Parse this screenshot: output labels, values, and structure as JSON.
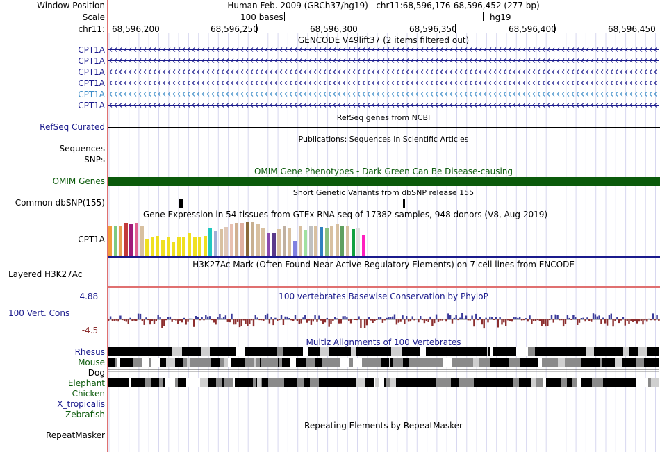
{
  "labels": {
    "window_position": "Window Position",
    "scale": "Scale",
    "chrom": "chr11:",
    "transcripts": [
      "CPT1A",
      "CPT1A",
      "CPT1A",
      "CPT1A",
      "CPT1A",
      "CPT1A"
    ],
    "refseq": "RefSeq Curated",
    "sequences": "Sequences",
    "snps": "SNPs",
    "omim": "OMIM Genes",
    "common_dbsnp": "Common dbSNP(155)",
    "gtex_gene": "CPT1A",
    "h3k27ac": "Layered H3K27Ac",
    "cons_max": "4.88 _",
    "cons_name": "100 Vert. Cons",
    "cons_min": "-4.5 _",
    "species": [
      "Rhesus",
      "Mouse",
      "Dog",
      "Elephant",
      "Chicken",
      "X_tropicalis",
      "Zebrafish"
    ],
    "repeatmasker": "RepeatMasker"
  },
  "header": {
    "assembly": "Human Feb. 2009 (GRCh37/hg19)",
    "position": "chr11:68,596,176-68,596,452 (277 bp)",
    "scale_text": "100 bases",
    "db": "hg19",
    "coordinates": [
      "68,596,200",
      "68,596,250",
      "68,596,300",
      "68,596,350",
      "68,596,400",
      "68,596,450"
    ]
  },
  "tracks": {
    "gencode_title": "GENCODE V49lift37 (2 items filtered out)",
    "refseq_title": "RefSeq genes from NCBI",
    "publications_title": "Publications: Sequences in Scientific Articles",
    "omim_title": "OMIM Gene Phenotypes - Dark Green Can Be Disease-causing",
    "snp_title": "Short Genetic Variants from dbSNP release 155",
    "gtex_title": "Gene Expression in 54 tissues from GTEx RNA-seq of 17382 samples, 948 donors (V8, Aug 2019)",
    "h3k27ac_title": "H3K27Ac Mark (Often Found Near Active Regulatory Elements) on 7 cell lines from ENCODE",
    "phylop_title": "100 vertebrates Basewise Conservation by PhyloP",
    "multiz_title": "Multiz Alignments of 100 Vertebrates",
    "repeatmasker_title": "Repeating Elements by RepeatMasker"
  },
  "colors": {
    "navy": "#1a1a8c",
    "omim_green": "#0b5a0b",
    "light_blue_transcript": "#3c8cc8",
    "phylop_pos": "#3a3a9a",
    "phylop_neg": "#8c2e2e",
    "h3k27ac_line": "#e07070",
    "grid": "#d8d8f0"
  },
  "gtex_colors": [
    "#f39c3a",
    "#7fc97f",
    "#e8a050",
    "#c23a3a",
    "#a01a7a",
    "#e06090",
    "#d8c0a0",
    "#f0e020",
    "#f0e020",
    "#f0e020",
    "#f0e020",
    "#f0e020",
    "#f0e020",
    "#f0e020",
    "#f0e020",
    "#f0e020",
    "#f0e020",
    "#f0e020",
    "#f0e020",
    "#20c8c0",
    "#a0b0d8",
    "#d8c0a0",
    "#e0c8b8",
    "#e8c0b0",
    "#d0b090",
    "#e0b0a0",
    "#8a6a3a",
    "#c8b090",
    "#d8c0a0",
    "#d8c0a0",
    "#8a4ab0",
    "#5a3a8a",
    "#d8c0a0",
    "#c0b0a0",
    "#d8c0a0",
    "#8080e0",
    "#d8c0a0",
    "#a0e0a0",
    "#c0c0c0",
    "#d8c0a0",
    "#3080c0",
    "#8ac080",
    "#d8c0a0",
    "#d8c0a0",
    "#60a060",
    "#d8c0a0",
    "#10a040",
    "#e0e0e0",
    "#ff20c0"
  ],
  "gtex_values": [
    0.82,
    0.85,
    0.85,
    0.93,
    0.88,
    0.93,
    0.83,
    0.48,
    0.52,
    0.54,
    0.45,
    0.53,
    0.4,
    0.5,
    0.53,
    0.62,
    0.5,
    0.52,
    0.55,
    0.78,
    0.7,
    0.75,
    0.8,
    0.88,
    0.93,
    0.93,
    0.95,
    0.95,
    0.88,
    0.78,
    0.65,
    0.62,
    0.75,
    0.82,
    0.78,
    0.42,
    0.85,
    0.72,
    0.82,
    0.85,
    0.8,
    0.78,
    0.82,
    0.88,
    0.82,
    0.82,
    0.75,
    0.78,
    0.58
  ]
}
